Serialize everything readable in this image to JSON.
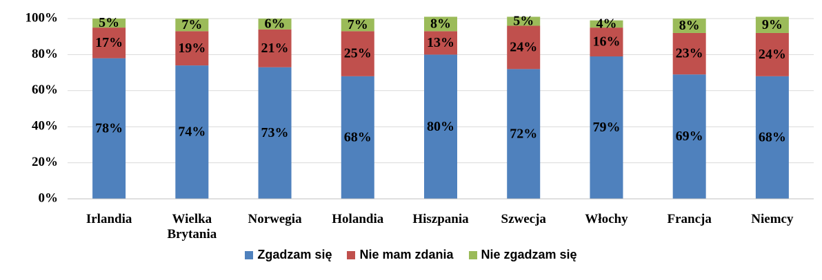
{
  "chart_data": {
    "type": "stacked_bar",
    "categories": [
      "Irlandia",
      "Wielka Brytania",
      "Norwegia",
      "Holandia",
      "Hiszpania",
      "Szwecja",
      "Włochy",
      "Francja",
      "Niemcy"
    ],
    "series": [
      {
        "name": "Zgadzam się",
        "color": "#4f81bd",
        "values": [
          78,
          74,
          73,
          68,
          80,
          72,
          79,
          69,
          68
        ],
        "value_labels": [
          "78%",
          "74%",
          "73%",
          "68%",
          "80%",
          "72%",
          "79%",
          "69%",
          "68%"
        ]
      },
      {
        "name": "Nie mam zdania",
        "color": "#c0504d",
        "values": [
          17,
          19,
          21,
          25,
          13,
          24,
          16,
          23,
          24
        ],
        "value_labels": [
          "17%",
          "19%",
          "21%",
          "25%",
          "13%",
          "24%",
          "16%",
          "23%",
          "24%"
        ]
      },
      {
        "name": "Nie zgadzam się",
        "color": "#9bbb59",
        "values": [
          5,
          7,
          6,
          7,
          8,
          5,
          4,
          8,
          9
        ],
        "value_labels": [
          "5%",
          "7%",
          "6%",
          "7%",
          "8%",
          "5%",
          "4%",
          "8%",
          "9%"
        ]
      }
    ],
    "ylim": [
      0,
      100
    ],
    "yticks": [
      {
        "value": 0,
        "label": "0%"
      },
      {
        "value": 20,
        "label": "20%"
      },
      {
        "value": 40,
        "label": "40%"
      },
      {
        "value": 60,
        "label": "60%"
      },
      {
        "value": 80,
        "label": "80%"
      },
      {
        "value": 100,
        "label": "100%"
      }
    ],
    "grid": true,
    "legend": "bottom"
  }
}
